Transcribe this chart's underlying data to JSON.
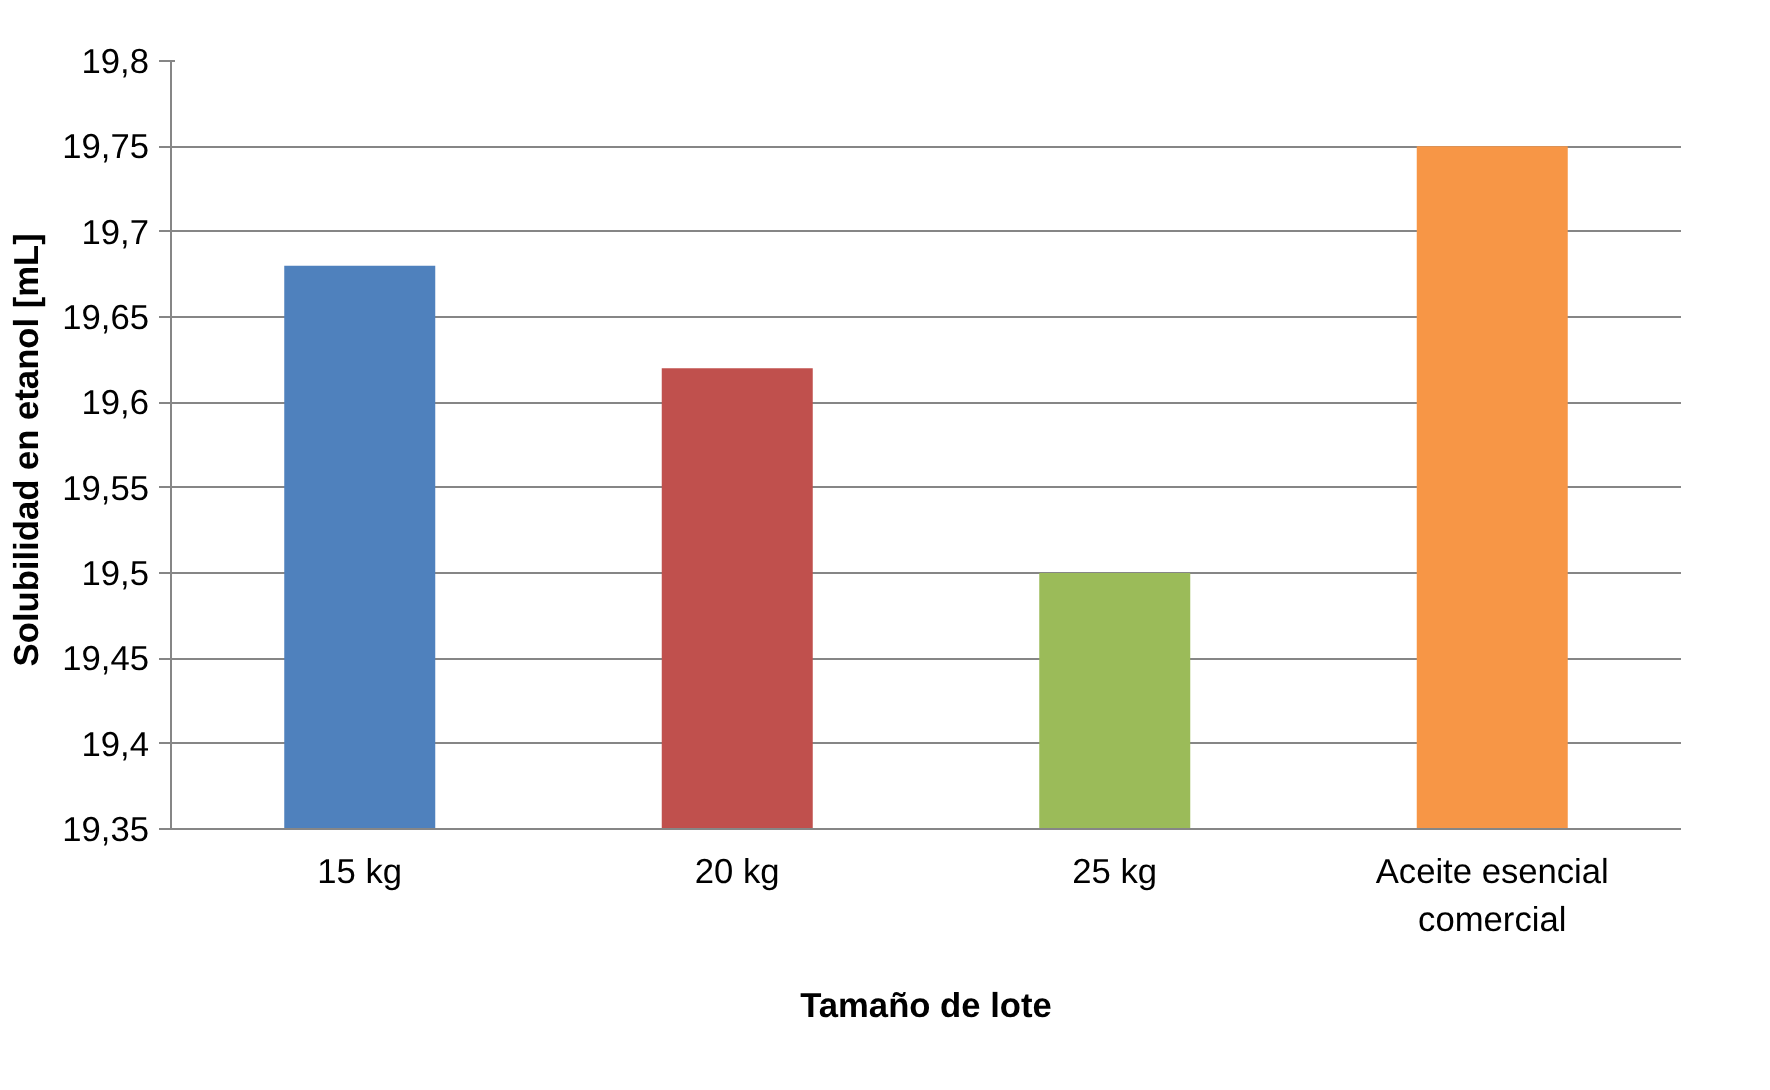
{
  "chart_data": {
    "type": "bar",
    "xlabel": "Tamaño de lote",
    "ylabel": "Solubilidad en  etanol [mL]",
    "categories": [
      "15 kg",
      "20 kg",
      "25 kg",
      "Aceite esencial\ncomercial"
    ],
    "values": [
      19.68,
      19.62,
      19.5,
      19.75
    ],
    "colors": [
      "#4f81bd",
      "#c0504d",
      "#9bbb59",
      "#f79646"
    ],
    "ylim": [
      19.35,
      19.8
    ],
    "yticks": [
      {
        "value": 19.35,
        "label": "19,35"
      },
      {
        "value": 19.4,
        "label": "19,4"
      },
      {
        "value": 19.45,
        "label": "19,45"
      },
      {
        "value": 19.5,
        "label": "19,5"
      },
      {
        "value": 19.55,
        "label": "19,55"
      },
      {
        "value": 19.6,
        "label": "19,6"
      },
      {
        "value": 19.65,
        "label": "19,65"
      },
      {
        "value": 19.7,
        "label": "19,7"
      },
      {
        "value": 19.75,
        "label": "19,75"
      },
      {
        "value": 19.8,
        "label": "19,8"
      }
    ],
    "grid": "y"
  }
}
